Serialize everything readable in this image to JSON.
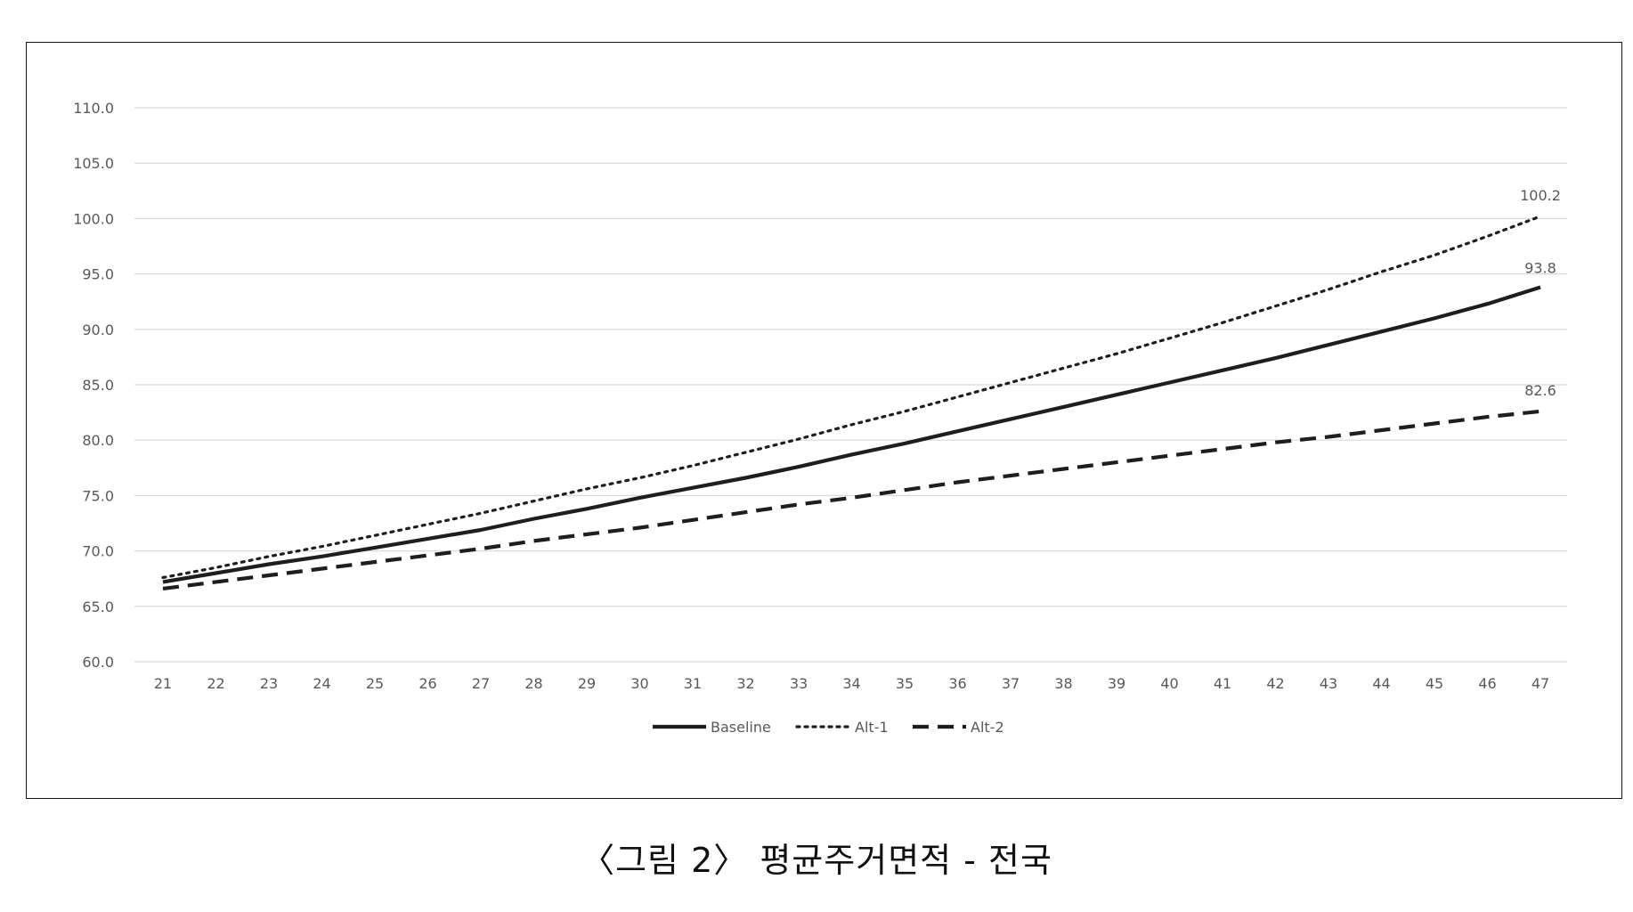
{
  "caption": "〈그림 2〉 평균주거면적 - 전국",
  "colors": {
    "series": "#1e1e1e",
    "grid": "#d9d9d9",
    "axis_text": "#595959"
  },
  "chart_data": {
    "type": "line",
    "title": "",
    "xlabel": "",
    "ylabel": "",
    "x": [
      21,
      22,
      23,
      24,
      25,
      26,
      27,
      28,
      29,
      30,
      31,
      32,
      33,
      34,
      35,
      36,
      37,
      38,
      39,
      40,
      41,
      42,
      43,
      44,
      45,
      46,
      47
    ],
    "ylim": [
      60,
      110
    ],
    "yticks": [
      60,
      65,
      70,
      75,
      80,
      85,
      90,
      95,
      100,
      105,
      110
    ],
    "ytick_labels": [
      "60.0",
      "65.0",
      "70.0",
      "75.0",
      "80.0",
      "85.0",
      "90.0",
      "95.0",
      "100.0",
      "105.0",
      "110.0"
    ],
    "grid": true,
    "legend": "bottom",
    "series": [
      {
        "name": "Baseline",
        "style": "solid",
        "values": [
          67.2,
          68.0,
          68.8,
          69.5,
          70.3,
          71.1,
          71.9,
          72.9,
          73.8,
          74.8,
          75.7,
          76.6,
          77.6,
          78.7,
          79.7,
          80.8,
          81.9,
          83.0,
          84.1,
          85.2,
          86.3,
          87.4,
          88.6,
          89.8,
          91.0,
          92.3,
          93.8
        ],
        "end_label": "93.8"
      },
      {
        "name": "Alt-1",
        "style": "dotted",
        "values": [
          67.6,
          68.5,
          69.5,
          70.4,
          71.4,
          72.4,
          73.4,
          74.5,
          75.6,
          76.6,
          77.7,
          78.9,
          80.1,
          81.4,
          82.6,
          83.9,
          85.2,
          86.5,
          87.8,
          89.2,
          90.6,
          92.1,
          93.6,
          95.2,
          96.7,
          98.4,
          100.2
        ],
        "end_label": "100.2"
      },
      {
        "name": "Alt-2",
        "style": "dashed",
        "values": [
          66.6,
          67.2,
          67.8,
          68.4,
          69.0,
          69.6,
          70.2,
          70.9,
          71.5,
          72.1,
          72.8,
          73.5,
          74.2,
          74.8,
          75.5,
          76.2,
          76.8,
          77.4,
          78.0,
          78.6,
          79.2,
          79.8,
          80.3,
          80.9,
          81.5,
          82.1,
          82.6
        ],
        "end_label": "82.6"
      }
    ]
  }
}
